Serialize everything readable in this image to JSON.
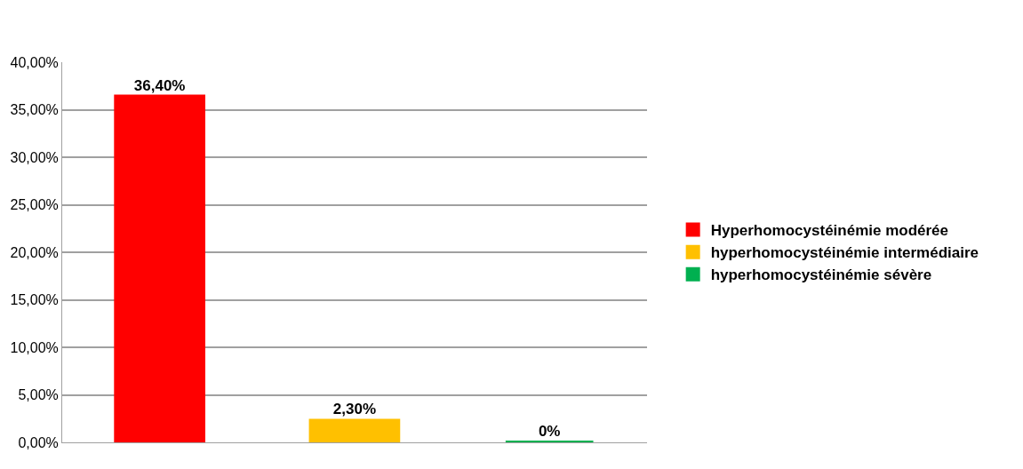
{
  "chart_data": {
    "type": "bar",
    "categories": [
      null,
      null,
      null
    ],
    "series": [
      {
        "name": "Hyperhomocystéinémie modérée",
        "color": "#ff0000",
        "values": [
          36.4,
          null,
          null
        ],
        "value_labels": [
          "36,40%",
          null,
          null
        ]
      },
      {
        "name": "hyperhomocystéinémie intermédiaire",
        "color": "#ffc000",
        "values": [
          null,
          2.3,
          null
        ],
        "value_labels": [
          null,
          "2,30%",
          null
        ]
      },
      {
        "name": "hyperhomocystéinémie sévère",
        "color": "#00b050",
        "values": [
          null,
          null,
          0
        ],
        "value_labels": [
          null,
          null,
          "0%"
        ]
      }
    ],
    "ylim": [
      0,
      40
    ],
    "yticks": [
      {
        "value": 0,
        "label": "0,00%"
      },
      {
        "value": 5,
        "label": "5,00%"
      },
      {
        "value": 10,
        "label": "10,00%"
      },
      {
        "value": 15,
        "label": "15,00%"
      },
      {
        "value": 20,
        "label": "20,00%"
      },
      {
        "value": 25,
        "label": "25,00%"
      },
      {
        "value": 30,
        "label": "30,00%"
      },
      {
        "value": 35,
        "label": "35,00%"
      },
      {
        "value": 40,
        "label": "40,00%"
      }
    ],
    "grid": "y",
    "legend": "right",
    "tick_labels": "y"
  }
}
